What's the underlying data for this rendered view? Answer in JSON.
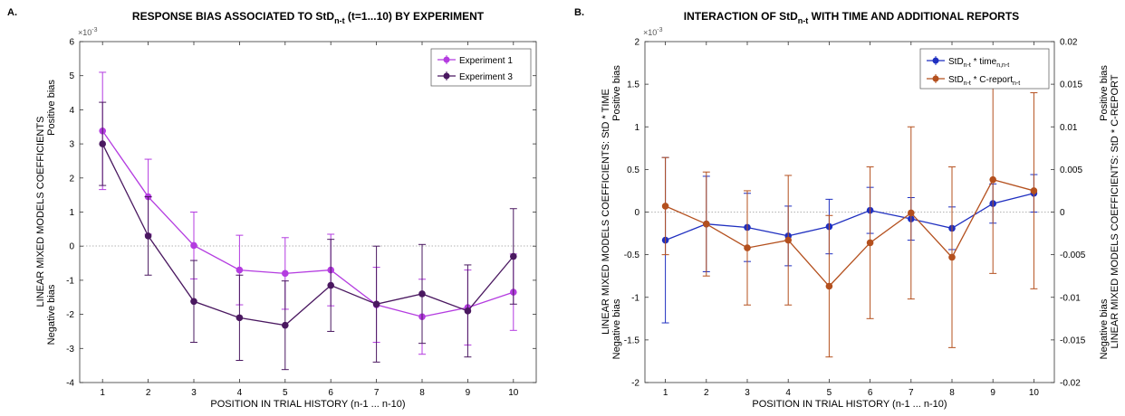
{
  "chart_data": [
    {
      "type": "line",
      "panel_label": "A.",
      "title": "RESPONSE BIAS ASSOCIATED TO StD",
      "title_sub": "n-t",
      "title_tail": " (t=1...10) BY EXPERIMENT",
      "xlabel": "POSITION IN TRIAL HISTORY (n-1 ... n-10)",
      "ylabel": "LINEAR MIXED MODELS COEFFICIENTS",
      "ylabel_pos": "Positive bias",
      "ylabel_neg": "Negative bias",
      "exponent": "×10",
      "exponent_sup": "-3",
      "x": [
        1,
        2,
        3,
        4,
        5,
        6,
        7,
        8,
        9,
        10
      ],
      "xlim": [
        0.5,
        10.5
      ],
      "ylim": [
        -4,
        6
      ],
      "yticks": [
        -4,
        -3,
        -2,
        -1,
        0,
        1,
        2,
        3,
        4,
        5,
        6
      ],
      "xticks": [
        1,
        2,
        3,
        4,
        5,
        6,
        7,
        8,
        9,
        10
      ],
      "legend_position": "top-right",
      "series": [
        {
          "name": "Experiment 1",
          "color": "#b43ce0",
          "values": [
            3.38,
            1.45,
            0.02,
            -0.7,
            -0.8,
            -0.7,
            -1.72,
            -2.07,
            -1.8,
            -1.35
          ],
          "err": [
            1.72,
            1.1,
            0.98,
            1.02,
            1.05,
            1.05,
            1.1,
            1.1,
            1.1,
            1.12
          ]
        },
        {
          "name": "Experiment 3",
          "color": "#4a1860",
          "values": [
            3.0,
            0.3,
            -1.62,
            -2.1,
            -2.32,
            -1.15,
            -1.7,
            -1.4,
            -1.9,
            -0.3
          ],
          "err": [
            1.22,
            1.15,
            1.2,
            1.25,
            1.3,
            1.35,
            1.7,
            1.45,
            1.35,
            1.4
          ]
        }
      ]
    },
    {
      "type": "line",
      "panel_label": "B.",
      "title": "INTERACTION OF StD",
      "title_sub": "n-t",
      "title_tail": " WITH TIME AND ADDITIONAL REPORTS",
      "xlabel": "POSITION IN TRIAL HISTORY (n-1 ... n-10)",
      "ylabel_left": "LINEAR MIXED MODELS COEFFICIENTS: StD * TIME",
      "ylabel_right": "LINEAR MIXED MODELS COEFFICIENTS: StD * C-REPORT",
      "ylabel_pos": "Positive bias",
      "ylabel_neg": "Negative bias",
      "exponent": "×10",
      "exponent_sup": "-3",
      "x": [
        1,
        2,
        3,
        4,
        5,
        6,
        7,
        8,
        9,
        10
      ],
      "xlim": [
        0.5,
        10.5
      ],
      "ylim_left": [
        -2,
        2
      ],
      "ylim_right": [
        -0.02,
        0.02
      ],
      "yticks_left": [
        -2,
        -1.5,
        -1,
        -0.5,
        0,
        0.5,
        1,
        1.5,
        2
      ],
      "yticks_right": [
        -0.02,
        -0.015,
        -0.01,
        -0.005,
        0,
        0.005,
        0.01,
        0.015,
        0.02
      ],
      "xticks": [
        1,
        2,
        3,
        4,
        5,
        6,
        7,
        8,
        9,
        10
      ],
      "legend_position": "top-right",
      "series": [
        {
          "name": "StD",
          "name_sub": "n-t",
          "name_tail": " * time",
          "name_tail_sub": "n,n-t",
          "axis": "left",
          "color": "#1f2fc0",
          "values": [
            -0.33,
            -0.14,
            -0.18,
            -0.28,
            -0.17,
            0.02,
            -0.08,
            -0.19,
            0.1,
            0.22
          ],
          "err": [
            0.97,
            0.56,
            0.4,
            0.35,
            0.32,
            0.27,
            0.25,
            0.25,
            0.23,
            0.22
          ]
        },
        {
          "name": "StD",
          "name_sub": "n-t",
          "name_tail": " * C-report",
          "name_tail_sub": "n-t",
          "axis": "right",
          "color": "#b4501e",
          "values": [
            0.0007,
            -0.0014,
            -0.0042,
            -0.0033,
            -0.0087,
            -0.0036,
            -0.0001,
            -0.0053,
            0.0038,
            0.0025
          ],
          "err": [
            0.0057,
            0.0061,
            0.0067,
            0.0076,
            0.0083,
            0.0089,
            0.0101,
            0.0106,
            0.011,
            0.0115
          ]
        }
      ]
    }
  ]
}
